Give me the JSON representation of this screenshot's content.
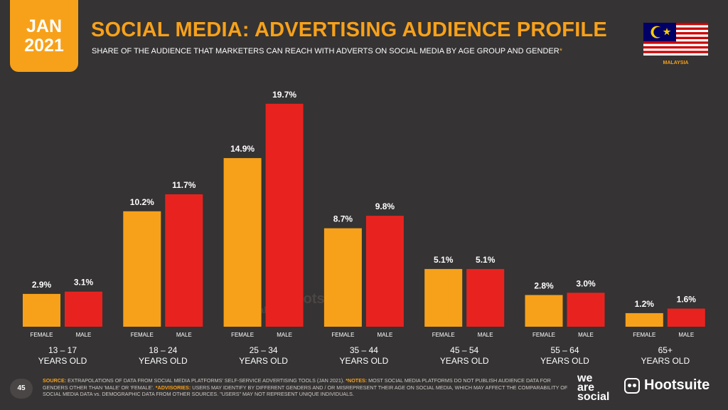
{
  "header": {
    "month": "JAN",
    "year": "2021",
    "title": "SOCIAL MEDIA: ADVERTISING AUDIENCE PROFILE",
    "subtitle": "SHARE OF THE AUDIENCE THAT MARKETERS CAN REACH WITH ADVERTS ON SOCIAL MEDIA BY AGE GROUP AND GENDER",
    "subtitle_mark": "*",
    "country": "MALAYSIA"
  },
  "colors": {
    "female": "#f7a11a",
    "male": "#e8231f",
    "accent": "#f7a11a",
    "background": "#353333"
  },
  "chart_data": {
    "type": "bar",
    "categories": [
      {
        "line1": "13 – 17",
        "line2": "YEARS OLD"
      },
      {
        "line1": "18 – 24",
        "line2": "YEARS OLD"
      },
      {
        "line1": "25 – 34",
        "line2": "YEARS OLD"
      },
      {
        "line1": "35 – 44",
        "line2": "YEARS OLD"
      },
      {
        "line1": "45 – 54",
        "line2": "YEARS OLD"
      },
      {
        "line1": "55 – 64",
        "line2": "YEARS OLD"
      },
      {
        "line1": "65+",
        "line2": "YEARS OLD"
      }
    ],
    "series": [
      {
        "name": "FEMALE",
        "values": [
          2.9,
          10.2,
          14.9,
          8.7,
          5.1,
          2.8,
          1.2
        ],
        "labels": [
          "2.9%",
          "10.2%",
          "14.9%",
          "8.7%",
          "5.1%",
          "2.8%",
          "1.2%"
        ]
      },
      {
        "name": "MALE",
        "values": [
          3.1,
          11.7,
          19.7,
          9.8,
          5.1,
          3.0,
          1.6
        ],
        "labels": [
          "3.1%",
          "11.7%",
          "19.7%",
          "9.8%",
          "5.1%",
          "3.0%",
          "1.6%"
        ]
      }
    ],
    "unit": "%"
  },
  "watermark": {
    "brand1": "we are social",
    "brand2": "Hootsuite"
  },
  "footer": {
    "page_number": "45",
    "source_label": "SOURCE:",
    "source_text": "EXTRAPOLATIONS OF DATA FROM SOCIAL MEDIA PLATFORMS' SELF-SERVICE ADVERTISING TOOLS (JAN 2021).",
    "notes_label": "*NOTES:",
    "notes_text": "MOST SOCIAL MEDIA PLATFORMS DO NOT PUBLISH AUDIENCE DATA FOR GENDERS OTHER THAN 'MALE' OR 'FEMALE'.",
    "advisories_label": "*ADVISORIES:",
    "advisories_text": "USERS MAY IDENTIFY BY DIFFERENT GENDERS AND / OR MISREPRESENT THEIR AGE ON SOCIAL MEDIA, WHICH MAY AFFECT THE COMPARABILITY OF SOCIAL MEDIA DATA vs. DEMOGRAPHIC DATA FROM OTHER SOURCES. \"USERS\" MAY NOT REPRESENT UNIQUE INDIVIDUALS.",
    "brand1_line1": "we",
    "brand1_line2": "are",
    "brand1_line3": "social",
    "brand2": "Hootsuite"
  }
}
